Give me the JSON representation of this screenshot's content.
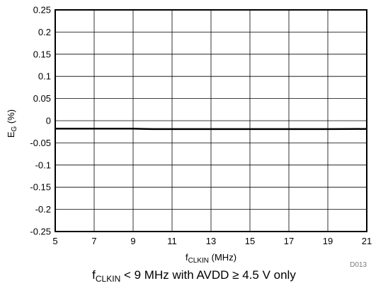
{
  "chart_data": {
    "type": "line",
    "xlabel_main": "f",
    "xlabel_sub": "CLKIN",
    "xlabel_rest": " (MHz)",
    "ylabel_main": "E",
    "ylabel_sub": "G",
    "ylabel_rest": " (%)",
    "xlim": [
      5,
      21
    ],
    "ylim": [
      -0.25,
      0.25
    ],
    "x_ticks": [
      5,
      7,
      9,
      11,
      13,
      15,
      17,
      19,
      21
    ],
    "y_ticks": [
      "0.25",
      "0.2",
      "0.15",
      "0.1",
      "0.05",
      "0",
      "-0.05",
      "-0.1",
      "-0.15",
      "-0.2",
      "-0.25"
    ],
    "grid": true,
    "series": [
      {
        "x": [
          5,
          6,
          7,
          8,
          9,
          9.5,
          10,
          11,
          12,
          13,
          14,
          15,
          16,
          17,
          18,
          19,
          20,
          21
        ],
        "y": [
          -0.018,
          -0.018,
          -0.018,
          -0.018,
          -0.018,
          -0.0185,
          -0.019,
          -0.019,
          -0.019,
          -0.019,
          -0.019,
          -0.019,
          -0.019,
          -0.019,
          -0.019,
          -0.019,
          -0.0188,
          -0.0185
        ]
      }
    ],
    "figure_code": "D013"
  },
  "caption": {
    "f": "f",
    "sub": "CLKIN",
    "rest": " < 9 MHz with AVDD ≥ 4.5 V only"
  }
}
